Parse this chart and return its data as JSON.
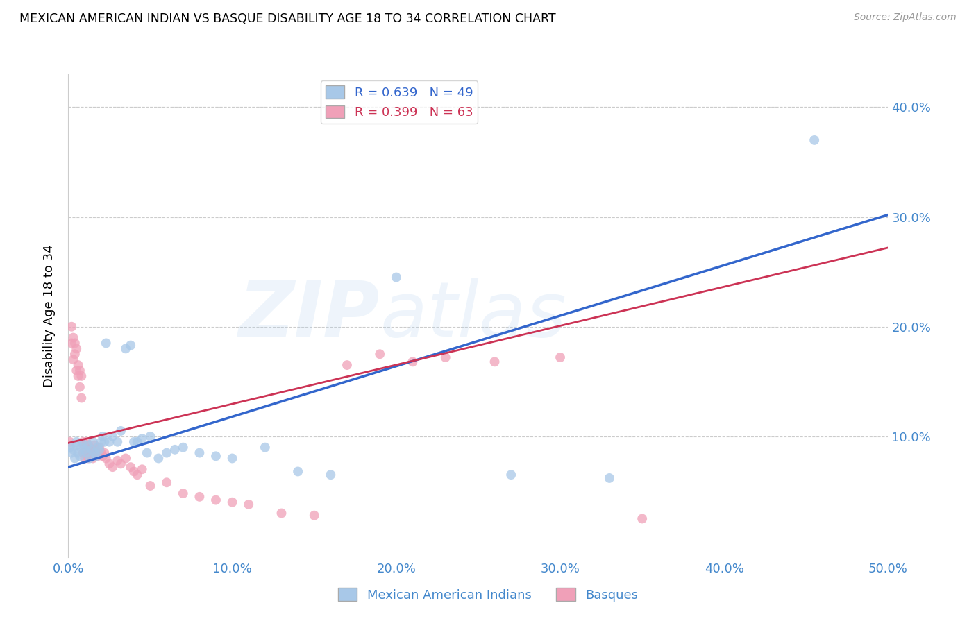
{
  "title": "MEXICAN AMERICAN INDIAN VS BASQUE DISABILITY AGE 18 TO 34 CORRELATION CHART",
  "source": "Source: ZipAtlas.com",
  "ylabel": "Disability Age 18 to 34",
  "xlim": [
    0.0,
    0.5
  ],
  "ylim": [
    -0.01,
    0.43
  ],
  "yticks": [
    0.1,
    0.2,
    0.3,
    0.4
  ],
  "xticks": [
    0.0,
    0.1,
    0.2,
    0.3,
    0.4,
    0.5
  ],
  "blue_color": "#A8C8E8",
  "pink_color": "#F0A0B8",
  "blue_line_color": "#3366CC",
  "pink_line_color": "#CC3355",
  "legend_blue_r": "R = 0.639",
  "legend_blue_n": "N = 49",
  "legend_pink_r": "R = 0.399",
  "legend_pink_n": "N = 63",
  "label_blue": "Mexican American Indians",
  "label_pink": "Basques",
  "tick_color": "#4488CC",
  "blue_line_x0": 0.0,
  "blue_line_y0": 0.072,
  "blue_line_x1": 0.5,
  "blue_line_y1": 0.302,
  "pink_line_x0": 0.0,
  "pink_line_y0": 0.094,
  "pink_line_x1": 0.5,
  "pink_line_y1": 0.272,
  "blue_x": [
    0.001,
    0.002,
    0.003,
    0.004,
    0.005,
    0.005,
    0.006,
    0.007,
    0.008,
    0.009,
    0.01,
    0.011,
    0.012,
    0.013,
    0.014,
    0.015,
    0.016,
    0.017,
    0.018,
    0.019,
    0.02,
    0.021,
    0.022,
    0.023,
    0.025,
    0.027,
    0.03,
    0.032,
    0.035,
    0.038,
    0.04,
    0.042,
    0.045,
    0.048,
    0.05,
    0.055,
    0.06,
    0.065,
    0.07,
    0.08,
    0.09,
    0.1,
    0.12,
    0.14,
    0.16,
    0.2,
    0.27,
    0.33,
    0.455
  ],
  "blue_y": [
    0.09,
    0.085,
    0.088,
    0.08,
    0.092,
    0.095,
    0.085,
    0.082,
    0.09,
    0.093,
    0.088,
    0.085,
    0.092,
    0.08,
    0.088,
    0.095,
    0.085,
    0.082,
    0.09,
    0.088,
    0.095,
    0.1,
    0.095,
    0.185,
    0.095,
    0.1,
    0.095,
    0.105,
    0.18,
    0.183,
    0.095,
    0.095,
    0.098,
    0.085,
    0.1,
    0.08,
    0.085,
    0.088,
    0.09,
    0.085,
    0.082,
    0.08,
    0.09,
    0.068,
    0.065,
    0.245,
    0.065,
    0.062,
    0.37
  ],
  "pink_x": [
    0.001,
    0.002,
    0.002,
    0.003,
    0.003,
    0.004,
    0.004,
    0.005,
    0.005,
    0.006,
    0.006,
    0.007,
    0.007,
    0.008,
    0.008,
    0.009,
    0.009,
    0.01,
    0.01,
    0.011,
    0.011,
    0.012,
    0.012,
    0.013,
    0.013,
    0.014,
    0.014,
    0.015,
    0.015,
    0.016,
    0.016,
    0.017,
    0.018,
    0.019,
    0.02,
    0.021,
    0.022,
    0.023,
    0.025,
    0.027,
    0.03,
    0.032,
    0.035,
    0.038,
    0.04,
    0.042,
    0.045,
    0.05,
    0.06,
    0.07,
    0.08,
    0.09,
    0.1,
    0.11,
    0.13,
    0.15,
    0.17,
    0.19,
    0.21,
    0.23,
    0.26,
    0.3,
    0.35
  ],
  "pink_y": [
    0.095,
    0.2,
    0.185,
    0.19,
    0.17,
    0.175,
    0.185,
    0.16,
    0.18,
    0.155,
    0.165,
    0.145,
    0.16,
    0.135,
    0.155,
    0.095,
    0.085,
    0.09,
    0.08,
    0.085,
    0.095,
    0.08,
    0.092,
    0.085,
    0.09,
    0.082,
    0.088,
    0.08,
    0.085,
    0.088,
    0.092,
    0.085,
    0.082,
    0.09,
    0.085,
    0.082,
    0.085,
    0.08,
    0.075,
    0.072,
    0.078,
    0.075,
    0.08,
    0.072,
    0.068,
    0.065,
    0.07,
    0.055,
    0.058,
    0.048,
    0.045,
    0.042,
    0.04,
    0.038,
    0.03,
    0.028,
    0.165,
    0.175,
    0.168,
    0.172,
    0.168,
    0.172,
    0.025
  ]
}
